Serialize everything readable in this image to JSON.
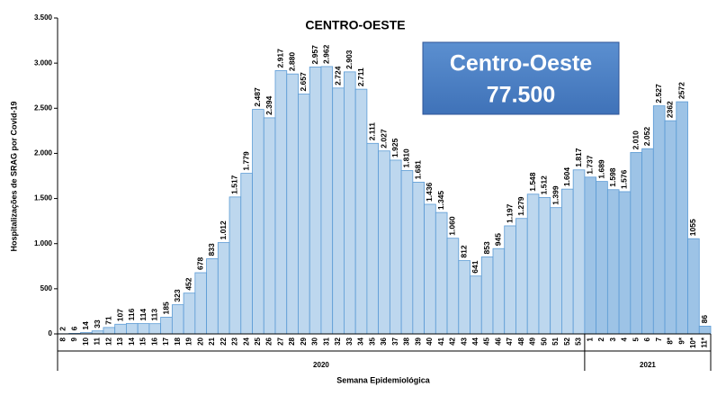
{
  "chart_data": {
    "type": "bar",
    "title": "CENTRO-OESTE",
    "ylabel": "Hospitalizações de SRAG por Covid-19",
    "xlabel": "Semana Epidemiológica",
    "annotation": {
      "lines": [
        "Centro-Oeste",
        "77.500"
      ]
    },
    "ylim": [
      0,
      3500
    ],
    "yticks": [
      0,
      500,
      {
        "value": 1000,
        "label": "1.000"
      },
      {
        "value": 1500,
        "label": "1.500"
      },
      {
        "value": 2000,
        "label": "2.000"
      },
      {
        "value": 2500,
        "label": "2.500"
      },
      {
        "value": 3000,
        "label": "3.000"
      },
      {
        "value": 3500,
        "label": "3.500"
      }
    ],
    "groups": [
      {
        "name": "2020",
        "color": "#bdd7ee",
        "categories": [
          "8",
          "9",
          "10",
          "11",
          "12",
          "13",
          "14",
          "15",
          "16",
          "17",
          "18",
          "19",
          "20",
          "21",
          "22",
          "23",
          "24",
          "25",
          "26",
          "27",
          "28",
          "29",
          "30",
          "31",
          "32",
          "33",
          "34",
          "35",
          "36",
          "37",
          "38",
          "39",
          "40",
          "41",
          "42",
          "43",
          "44",
          "45",
          "46",
          "47",
          "48",
          "49",
          "50",
          "51",
          "52",
          "53"
        ],
        "values": [
          2,
          6,
          14,
          33,
          71,
          107,
          116,
          114,
          113,
          185,
          323,
          452,
          678,
          833,
          1012,
          1517,
          1779,
          2487,
          2394,
          2917,
          2880,
          2657,
          2957,
          2962,
          2724,
          2903,
          2711,
          2111,
          2027,
          1925,
          1810,
          1681,
          1436,
          1345,
          1060,
          812,
          641,
          853,
          945,
          1197,
          1279,
          1548,
          1512,
          1399,
          1604,
          1817
        ],
        "value_labels": [
          "2",
          "6",
          "14",
          "33",
          "71",
          "107",
          "116",
          "114",
          "113",
          "185",
          "323",
          "452",
          "678",
          "833",
          "1.012",
          "1.517",
          "1.779",
          "2.487",
          "2.394",
          "2.917",
          "2.880",
          "2.657",
          "2.957",
          "2.962",
          "2.724",
          "2.903",
          "2.711",
          "2.111",
          "2.027",
          "1.925",
          "1.810",
          "1.681",
          "1.436",
          "1.345",
          "1.060",
          "812",
          "641",
          "853",
          "945",
          "1.197",
          "1.279",
          "1.548",
          "1.512",
          "1.399",
          "1.604",
          "1.817"
        ]
      },
      {
        "name": "2021",
        "color": "#9dc3e6",
        "categories": [
          "1",
          "2",
          "3",
          "4",
          "5",
          "6",
          "7",
          "8*",
          "9*",
          "10*",
          "11*"
        ],
        "values": [
          1737,
          1689,
          1598,
          1576,
          2010,
          2052,
          2527,
          2362,
          2572,
          1055,
          86
        ],
        "value_labels": [
          "1.737",
          "1.689",
          "1.598",
          "1.576",
          "2.010",
          "2.052",
          "2.527",
          "2362",
          "2572",
          "1055",
          "86"
        ]
      }
    ]
  }
}
